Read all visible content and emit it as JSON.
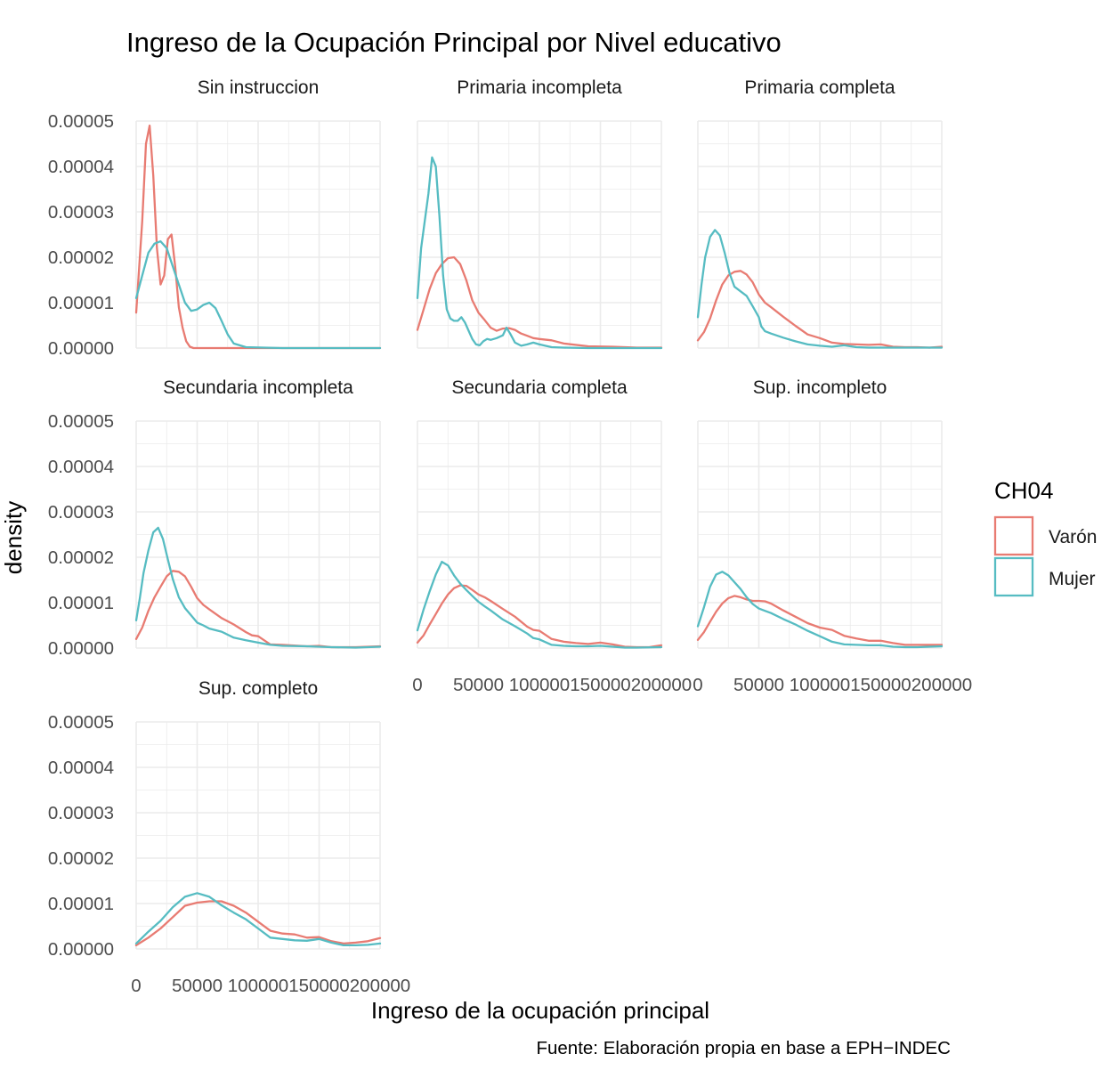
{
  "chart_data": {
    "type": "line",
    "title": "Ingreso de la Ocupación Principal por Nivel educativo",
    "xlabel": "Ingreso de la ocupación principal",
    "ylabel": "density",
    "caption": "Fuente: Elaboración propia en base a EPH−INDEC",
    "xlim": [
      0,
      200000
    ],
    "ylim": [
      0,
      5e-05
    ],
    "x_ticks": [
      "0",
      "50000",
      "100000",
      "150000",
      "200000"
    ],
    "y_ticks": [
      "0.00000",
      "0.00001",
      "0.00002",
      "0.00003",
      "0.00004",
      "0.00005"
    ],
    "grid": true,
    "legend": {
      "title": "CH04",
      "position": "right",
      "entries": [
        {
          "label": "Varón",
          "color": "#e87b72"
        },
        {
          "label": "Mujer",
          "color": "#56bcc2"
        }
      ]
    },
    "facets": [
      {
        "label": "Sin instruccion",
        "series": [
          {
            "name": "Varón",
            "x": [
              0,
              5000,
              8000,
              11000,
              14000,
              17000,
              20000,
              23000,
              26000,
              29000,
              32000,
              35000,
              38000,
              41000,
              44000,
              47000,
              50000,
              60000,
              100000,
              200000
            ],
            "y": [
              7.8e-06,
              2.8e-05,
              4.5e-05,
              4.9e-05,
              3.8e-05,
              2.2e-05,
              1.4e-05,
              1.6e-05,
              2.4e-05,
              2.5e-05,
              1.8e-05,
              9e-06,
              4.5e-06,
              1.5e-06,
              3e-07,
              0,
              0,
              0,
              0,
              0
            ]
          },
          {
            "name": "Mujer",
            "x": [
              0,
              5000,
              10000,
              15000,
              20000,
              25000,
              30000,
              35000,
              40000,
              45000,
              50000,
              55000,
              60000,
              65000,
              70000,
              75000,
              80000,
              90000,
              120000,
              200000
            ],
            "y": [
              1.1e-05,
              1.6e-05,
              2.1e-05,
              2.3e-05,
              2.35e-05,
              2.2e-05,
              1.8e-05,
              1.4e-05,
              1e-05,
              8.2e-06,
              8.5e-06,
              9.5e-06,
              1e-05,
              8.8e-06,
              6e-06,
              3e-06,
              1e-06,
              2e-07,
              0,
              0
            ]
          }
        ]
      },
      {
        "label": "Primaria incompleta",
        "series": [
          {
            "name": "Varón",
            "x": [
              0,
              5000,
              10000,
              15000,
              20000,
              25000,
              30000,
              35000,
              40000,
              45000,
              50000,
              55000,
              60000,
              65000,
              70000,
              75000,
              80000,
              85000,
              90000,
              95000,
              100000,
              110000,
              120000,
              140000,
              160000,
              180000,
              200000
            ],
            "y": [
              4e-06,
              8.5e-06,
              1.3e-05,
              1.65e-05,
              1.85e-05,
              1.98e-05,
              2e-05,
              1.85e-05,
              1.5e-05,
              1.05e-05,
              7.8e-06,
              6.2e-06,
              4.5e-06,
              3.8e-06,
              4.3e-06,
              4.4e-06,
              4e-06,
              3.2e-06,
              2.7e-06,
              2.2e-06,
              2e-06,
              1.7e-06,
              1e-06,
              4e-07,
              3e-07,
              1e-07,
              1e-07
            ]
          },
          {
            "name": "Mujer",
            "x": [
              0,
              3000,
              6000,
              9000,
              12000,
              15000,
              18000,
              21000,
              24000,
              27000,
              30000,
              33000,
              36000,
              39000,
              42000,
              45000,
              48000,
              51000,
              54000,
              57000,
              60000,
              65000,
              70000,
              73000,
              76000,
              80000,
              85000,
              90000,
              95000,
              100000,
              110000,
              120000,
              140000,
              160000,
              200000
            ],
            "y": [
              1.1e-05,
              2.2e-05,
              2.8e-05,
              3.4e-05,
              4.2e-05,
              4e-05,
              2.9e-05,
              1.6e-05,
              8.5e-06,
              6.5e-06,
              6e-06,
              6e-06,
              6.8e-06,
              5.6e-06,
              3.8e-06,
              2e-06,
              8e-07,
              6e-07,
              1.5e-06,
              2e-06,
              1.8e-06,
              2.2e-06,
              2.8e-06,
              4.5e-06,
              3.2e-06,
              1.2e-06,
              5e-07,
              8e-07,
              1.2e-06,
              8e-07,
              2e-07,
              1e-07,
              0,
              0,
              0
            ]
          }
        ]
      },
      {
        "label": "Primaria completa",
        "series": [
          {
            "name": "Varón",
            "x": [
              0,
              5000,
              10000,
              15000,
              20000,
              25000,
              30000,
              35000,
              40000,
              45000,
              50000,
              55000,
              60000,
              70000,
              80000,
              90000,
              100000,
              110000,
              120000,
              130000,
              140000,
              150000,
              160000,
              170000,
              180000,
              190000,
              200000
            ],
            "y": [
              1.7e-06,
              3.5e-06,
              6.5e-06,
              1.05e-05,
              1.4e-05,
              1.6e-05,
              1.68e-05,
              1.7e-05,
              1.62e-05,
              1.45e-05,
              1.18e-05,
              1e-05,
              9e-06,
              6.9e-06,
              4.9e-06,
              3e-06,
              2.2e-06,
              1.2e-06,
              9e-07,
              8e-07,
              7e-07,
              8e-07,
              3e-07,
              2e-07,
              2e-07,
              1e-07,
              3e-07
            ]
          },
          {
            "name": "Mujer",
            "x": [
              0,
              3000,
              6000,
              10000,
              14000,
              18000,
              22000,
              26000,
              30000,
              35000,
              40000,
              45000,
              50000,
              52000,
              55000,
              60000,
              70000,
              80000,
              90000,
              100000,
              110000,
              120000,
              130000,
              140000,
              160000,
              180000,
              200000
            ],
            "y": [
              6.8e-06,
              1.4e-05,
              2e-05,
              2.45e-05,
              2.6e-05,
              2.48e-05,
              2.1e-05,
              1.65e-05,
              1.35e-05,
              1.25e-05,
              1.15e-05,
              9.2e-06,
              6.8e-06,
              4.8e-06,
              3.7e-06,
              3.2e-06,
              2.3e-06,
              1.5e-06,
              8e-07,
              5e-07,
              3e-07,
              6e-07,
              2e-07,
              1e-07,
              1e-07,
              1e-07,
              1e-07
            ]
          }
        ]
      },
      {
        "label": "Secundaria incompleta",
        "series": [
          {
            "name": "Varón",
            "x": [
              0,
              5000,
              10000,
              15000,
              20000,
              25000,
              30000,
              35000,
              40000,
              45000,
              50000,
              55000,
              60000,
              70000,
              80000,
              90000,
              95000,
              100000,
              110000,
              120000,
              140000,
              150000,
              160000,
              180000,
              200000
            ],
            "y": [
              2e-06,
              4.5e-06,
              8.2e-06,
              1.12e-05,
              1.35e-05,
              1.58e-05,
              1.7e-05,
              1.68e-05,
              1.58e-05,
              1.35e-05,
              1.1e-05,
              9.5e-06,
              8.5e-06,
              6.6e-06,
              5.2e-06,
              3.5e-06,
              2.8e-06,
              2.6e-06,
              8e-07,
              7e-07,
              4e-07,
              5e-07,
              2e-07,
              2e-07,
              4e-07
            ]
          },
          {
            "name": "Mujer",
            "x": [
              0,
              3000,
              6000,
              10000,
              14000,
              18000,
              22000,
              26000,
              30000,
              35000,
              40000,
              45000,
              50000,
              55000,
              60000,
              70000,
              80000,
              90000,
              100000,
              110000,
              120000,
              140000,
              160000,
              180000,
              200000
            ],
            "y": [
              6.1e-06,
              1.1e-05,
              1.65e-05,
              2.15e-05,
              2.55e-05,
              2.65e-05,
              2.4e-05,
              1.95e-05,
              1.52e-05,
              1.12e-05,
              8.8e-06,
              7.2e-06,
              5.6e-06,
              5e-06,
              4.3e-06,
              3.6e-06,
              2.3e-06,
              1.7e-06,
              1.2e-06,
              7e-07,
              5e-07,
              4e-07,
              2e-07,
              1e-07,
              3e-07
            ]
          }
        ]
      },
      {
        "label": "Secundaria completa",
        "series": [
          {
            "name": "Varón",
            "x": [
              0,
              5000,
              10000,
              15000,
              20000,
              25000,
              30000,
              35000,
              40000,
              45000,
              50000,
              55000,
              60000,
              70000,
              80000,
              90000,
              95000,
              100000,
              110000,
              120000,
              130000,
              140000,
              150000,
              160000,
              170000,
              180000,
              190000,
              200000
            ],
            "y": [
              1.2e-06,
              2.8e-06,
              5.2e-06,
              7.5e-06,
              9.8e-06,
              1.18e-05,
              1.32e-05,
              1.38e-05,
              1.37e-05,
              1.28e-05,
              1.18e-05,
              1.12e-05,
              1.04e-05,
              8.6e-06,
              6.9e-06,
              4.7e-06,
              4e-06,
              3.8e-06,
              2e-06,
              1.4e-06,
              1.1e-06,
              9e-07,
              1.2e-06,
              8e-07,
              3e-07,
              2e-07,
              2e-07,
              6e-07
            ]
          },
          {
            "name": "Mujer",
            "x": [
              0,
              5000,
              10000,
              15000,
              20000,
              25000,
              30000,
              35000,
              40000,
              45000,
              50000,
              55000,
              60000,
              70000,
              80000,
              90000,
              95000,
              100000,
              110000,
              120000,
              130000,
              140000,
              150000,
              160000,
              170000,
              180000,
              200000
            ],
            "y": [
              3.9e-06,
              8.5e-06,
              1.25e-05,
              1.62e-05,
              1.9e-05,
              1.82e-05,
              1.6e-05,
              1.42e-05,
              1.28e-05,
              1.15e-05,
              1.02e-05,
              9.2e-06,
              8.3e-06,
              6.3e-06,
              4.8e-06,
              3.2e-06,
              2.2e-06,
              1.9e-06,
              7e-07,
              5e-07,
              4e-07,
              4e-07,
              5e-07,
              3e-07,
              1e-07,
              1e-07,
              2e-07
            ]
          }
        ]
      },
      {
        "label": "Sup. incompleto",
        "series": [
          {
            "name": "Varón",
            "x": [
              0,
              5000,
              10000,
              15000,
              20000,
              25000,
              30000,
              35000,
              40000,
              45000,
              50000,
              55000,
              60000,
              70000,
              80000,
              90000,
              100000,
              110000,
              120000,
              130000,
              140000,
              150000,
              160000,
              170000,
              180000,
              190000,
              200000
            ],
            "y": [
              1.8e-06,
              3.5e-06,
              5.8e-06,
              8e-06,
              9.8e-06,
              1.1e-05,
              1.15e-05,
              1.12e-05,
              1.07e-05,
              1.04e-05,
              1.04e-05,
              1.03e-05,
              9.8e-06,
              8.3e-06,
              6.9e-06,
              5.5e-06,
              4.5e-06,
              4e-06,
              2.7e-06,
              2.1e-06,
              1.6e-06,
              1.6e-06,
              1.1e-06,
              7e-07,
              7e-07,
              7e-07,
              7e-07
            ]
          },
          {
            "name": "Mujer",
            "x": [
              0,
              5000,
              10000,
              15000,
              20000,
              25000,
              30000,
              35000,
              40000,
              45000,
              50000,
              55000,
              60000,
              70000,
              80000,
              90000,
              100000,
              110000,
              120000,
              130000,
              140000,
              150000,
              160000,
              170000,
              180000,
              200000
            ],
            "y": [
              4.8e-06,
              9e-06,
              1.35e-05,
              1.62e-05,
              1.68e-05,
              1.6e-05,
              1.45e-05,
              1.3e-05,
              1.12e-05,
              9.7e-06,
              8.7e-06,
              8.2e-06,
              7.7e-06,
              6.4e-06,
              5.2e-06,
              3.8e-06,
              2.6e-06,
              1.4e-06,
              8e-07,
              7e-07,
              6e-07,
              6e-07,
              3e-07,
              2e-07,
              2e-07,
              4e-07
            ]
          }
        ]
      },
      {
        "label": "Sup. completo",
        "series": [
          {
            "name": "Varón",
            "x": [
              0,
              10000,
              20000,
              30000,
              40000,
              50000,
              60000,
              70000,
              80000,
              90000,
              100000,
              110000,
              120000,
              130000,
              140000,
              150000,
              160000,
              170000,
              180000,
              190000,
              200000
            ],
            "y": [
              8e-07,
              2.5e-06,
              4.5e-06,
              7e-06,
              9.5e-06,
              1.02e-05,
              1.05e-05,
              1.05e-05,
              9.5e-06,
              8e-06,
              6e-06,
              4e-06,
              3.4e-06,
              3.2e-06,
              2.5e-06,
              2.6e-06,
              1.7e-06,
              1.2e-06,
              1.4e-06,
              1.7e-06,
              2.4e-06
            ]
          },
          {
            "name": "Mujer",
            "x": [
              0,
              10000,
              20000,
              30000,
              40000,
              50000,
              60000,
              70000,
              80000,
              90000,
              100000,
              110000,
              120000,
              130000,
              140000,
              150000,
              160000,
              170000,
              180000,
              190000,
              200000
            ],
            "y": [
              1.2e-06,
              3.8e-06,
              6.2e-06,
              9.2e-06,
              1.15e-05,
              1.23e-05,
              1.15e-05,
              9.6e-06,
              8e-06,
              6.5e-06,
              4.5e-06,
              2.5e-06,
              2.2e-06,
              1.9e-06,
              1.8e-06,
              2.2e-06,
              1.4e-06,
              8e-07,
              8e-07,
              9e-07,
              1.2e-06
            ]
          }
        ]
      }
    ]
  }
}
